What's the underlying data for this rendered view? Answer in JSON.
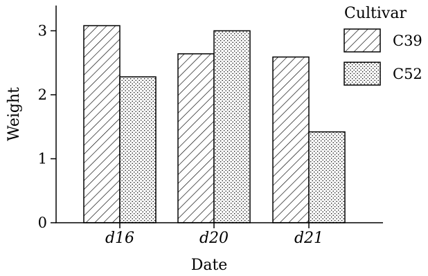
{
  "chart_data": {
    "type": "bar",
    "categories": [
      "d16",
      "d20",
      "d21"
    ],
    "series": [
      {
        "name": "C39",
        "values": [
          3.08,
          2.64,
          2.59
        ],
        "pattern": "hatch"
      },
      {
        "name": "C52",
        "values": [
          2.28,
          3.0,
          1.42
        ],
        "pattern": "dots"
      }
    ],
    "xlabel": "Date",
    "ylabel": "Weight",
    "ylim": [
      0,
      3.4
    ],
    "yticks": [
      0,
      1,
      2,
      3
    ],
    "legend": {
      "title": "Cultivar",
      "position": "top-right"
    },
    "grid": false
  }
}
